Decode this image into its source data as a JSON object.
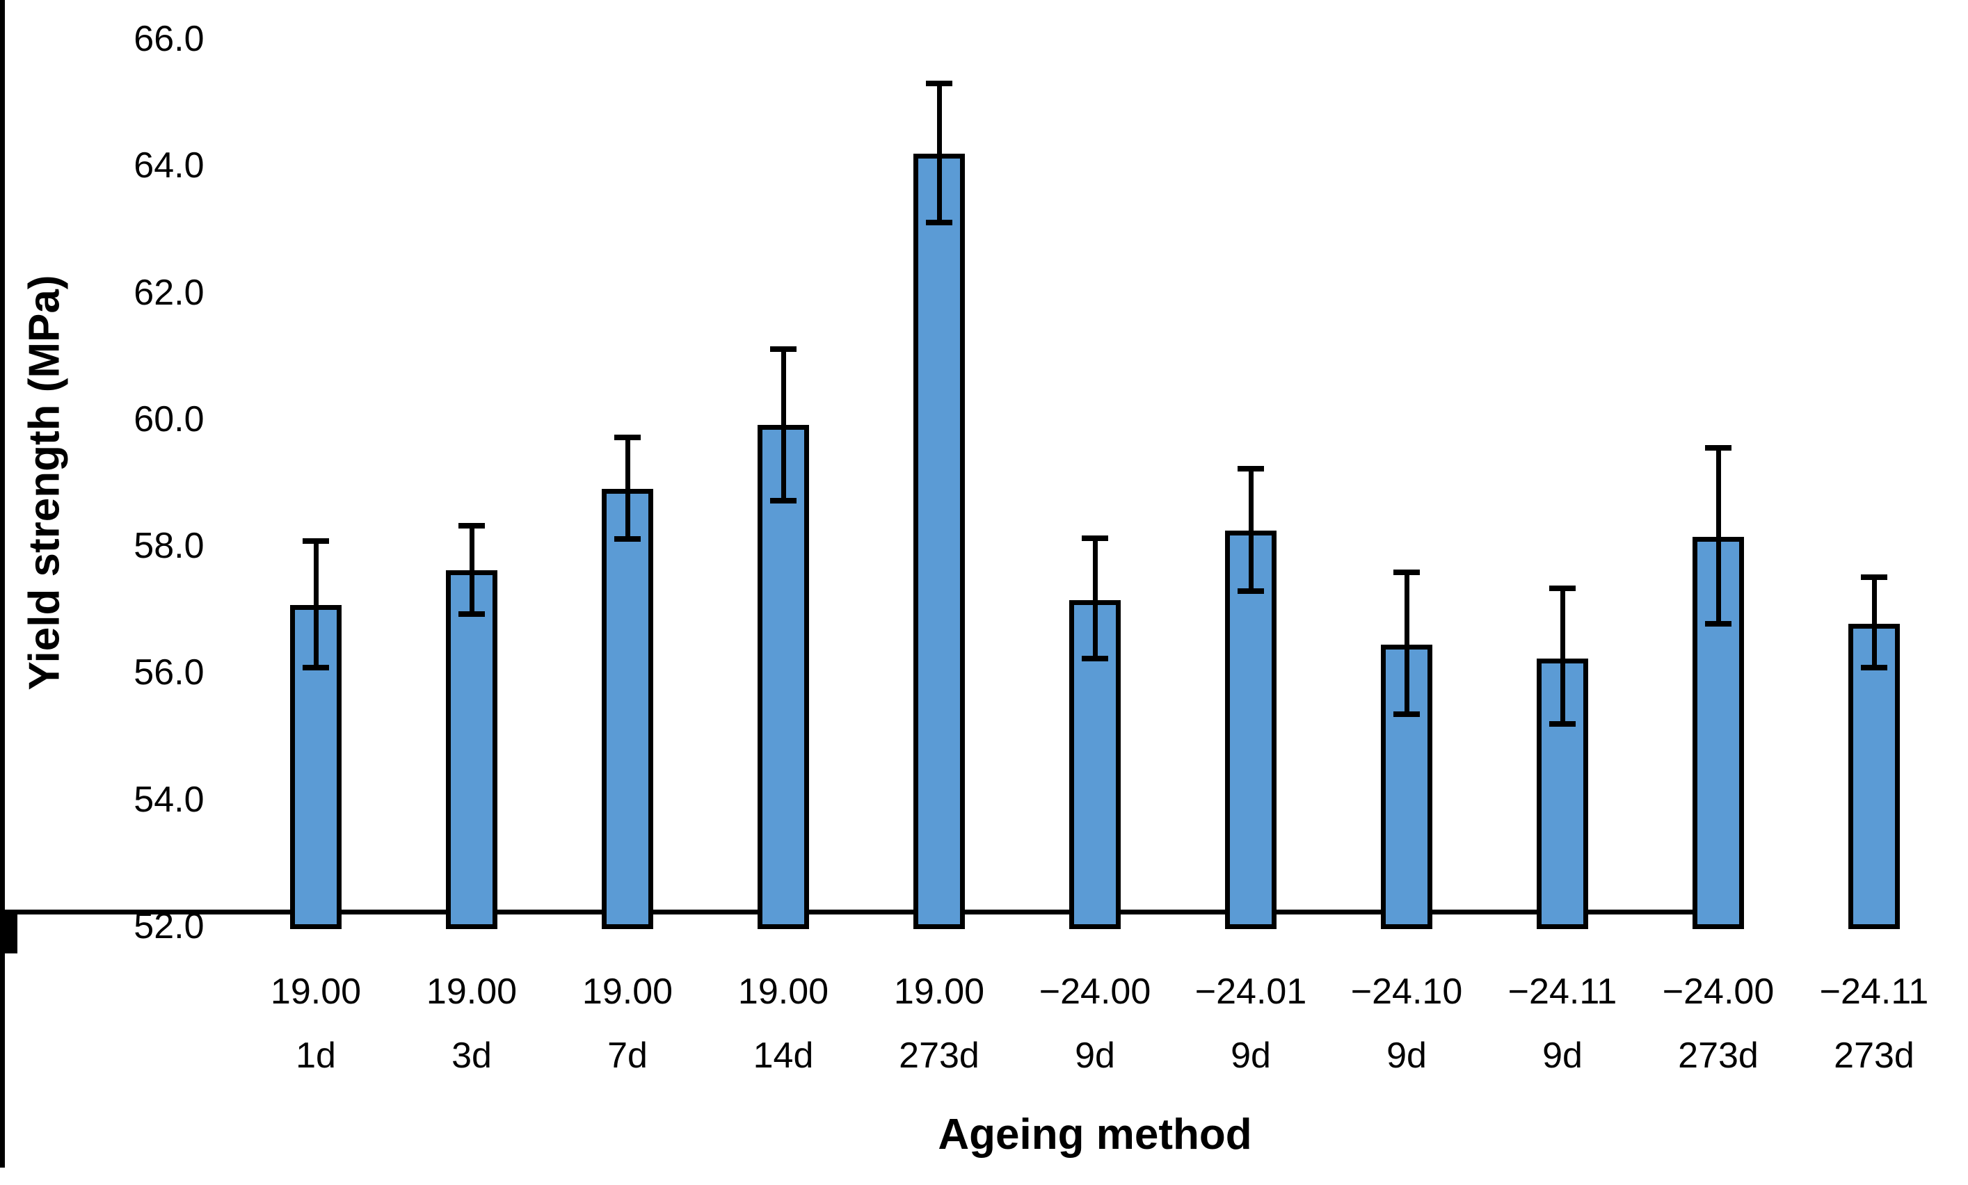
{
  "chart_data": {
    "type": "bar",
    "title": "",
    "xlabel": "Ageing method",
    "ylabel": "Yield strength (MPa)",
    "ylim": [
      52.0,
      66.0
    ],
    "ytick_step": 2.0,
    "ytick_labels": [
      "66.0",
      "64.0",
      "62.0",
      "60.0",
      "58.0",
      "56.0",
      "54.0",
      "52.0"
    ],
    "grid": false,
    "legend": null,
    "bar_color": "#5B9BD5",
    "bar_border_color": "#000000",
    "error_bar_color": "#000000",
    "axis_color": "#000000",
    "categories": [
      {
        "line1": "19.00",
        "line2": "1d"
      },
      {
        "line1": "19.00",
        "line2": "3d"
      },
      {
        "line1": "19.00",
        "line2": "7d"
      },
      {
        "line1": "19.00",
        "line2": "14d"
      },
      {
        "line1": "19.00",
        "line2": "273d"
      },
      {
        "line1": "−24.00",
        "line2": "9d"
      },
      {
        "line1": "−24.01",
        "line2": "9d"
      },
      {
        "line1": "−24.10",
        "line2": "9d"
      },
      {
        "line1": "−24.11",
        "line2": "9d"
      },
      {
        "line1": "−24.00",
        "line2": "273d"
      },
      {
        "line1": "−24.11",
        "line2": "273d"
      }
    ],
    "values": [
      57.07,
      57.62,
      58.9,
      59.91,
      64.19,
      57.15,
      58.24,
      56.44,
      56.22,
      58.14,
      56.77
    ],
    "error_plus": [
      1.01,
      0.7,
      0.81,
      1.2,
      1.11,
      0.97,
      0.98,
      1.14,
      1.11,
      1.41,
      0.74
    ],
    "error_minus": [
      0.99,
      0.69,
      0.79,
      1.2,
      1.09,
      0.93,
      0.95,
      1.09,
      1.03,
      1.37,
      0.69
    ]
  }
}
